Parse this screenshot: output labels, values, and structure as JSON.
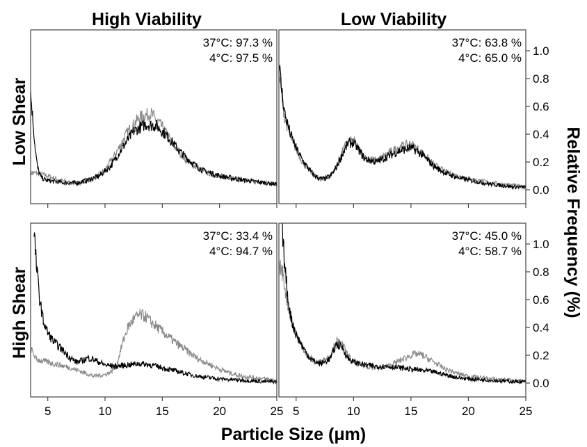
{
  "figure": {
    "column_titles": [
      "High Viability",
      "Low Viability"
    ],
    "row_titles": [
      "Low Shear",
      "High Shear"
    ],
    "xlabel": "Particle Size (μm)",
    "ylabel": "Relative Frequency (%)"
  },
  "chart_data": [
    {
      "type": "line",
      "column": "High Viability",
      "row": "Low Shear",
      "annotations": [
        "37°C: 97.3 %",
        "4°C: 97.5 %"
      ],
      "xlim": [
        3.5,
        25
      ],
      "ylim": [
        -0.1,
        1.15
      ],
      "xticks": [
        5,
        10,
        15,
        20,
        25
      ],
      "yticks": [
        0.0,
        0.2,
        0.4,
        0.6,
        0.8,
        1.0
      ],
      "series": [
        {
          "color": "#000000",
          "x": [
            3.5,
            3.7,
            3.9,
            4.1,
            4.4,
            4.8,
            5.5,
            6.5,
            7.5,
            8.5,
            9.5,
            10.5,
            11.5,
            12.5,
            13.5,
            14.5,
            15.5,
            16.5,
            17.5,
            18.5,
            20,
            22,
            24,
            25
          ],
          "y": [
            0.7,
            0.5,
            0.3,
            0.16,
            0.09,
            0.07,
            0.06,
            0.05,
            0.05,
            0.07,
            0.1,
            0.17,
            0.3,
            0.42,
            0.47,
            0.46,
            0.38,
            0.28,
            0.2,
            0.14,
            0.1,
            0.07,
            0.05,
            0.04
          ]
        },
        {
          "color": "#888888",
          "x": [
            3.5,
            4,
            5,
            6,
            7,
            8,
            9,
            10,
            11,
            12,
            13,
            14,
            15,
            16,
            17,
            18,
            19,
            20,
            22,
            24,
            25
          ],
          "y": [
            0.12,
            0.12,
            0.1,
            0.07,
            0.05,
            0.05,
            0.08,
            0.14,
            0.27,
            0.42,
            0.52,
            0.55,
            0.45,
            0.32,
            0.22,
            0.16,
            0.12,
            0.1,
            0.07,
            0.05,
            0.04
          ]
        }
      ]
    },
    {
      "type": "line",
      "column": "Low Viability",
      "row": "Low Shear",
      "annotations": [
        "37°C: 63.8 %",
        "4°C: 65.0 %"
      ],
      "xlim": [
        3.5,
        25
      ],
      "ylim": [
        -0.1,
        1.15
      ],
      "xticks": [
        5,
        10,
        15,
        20,
        25
      ],
      "yticks": [
        0.0,
        0.2,
        0.4,
        0.6,
        0.8,
        1.0
      ],
      "series": [
        {
          "color": "#000000",
          "x": [
            3.5,
            3.7,
            4,
            4.5,
            5,
            5.5,
            6,
            6.5,
            7,
            7.5,
            8,
            8.5,
            9,
            9.5,
            10,
            10.5,
            11,
            12,
            13,
            14,
            15,
            15.5,
            16,
            17,
            18,
            19,
            20,
            22,
            24,
            25
          ],
          "y": [
            0.92,
            0.75,
            0.55,
            0.4,
            0.3,
            0.22,
            0.16,
            0.11,
            0.08,
            0.08,
            0.1,
            0.16,
            0.25,
            0.33,
            0.34,
            0.28,
            0.22,
            0.2,
            0.24,
            0.28,
            0.3,
            0.28,
            0.25,
            0.17,
            0.12,
            0.09,
            0.07,
            0.04,
            0.02,
            0.02
          ]
        },
        {
          "color": "#888888",
          "x": [
            3.5,
            3.7,
            4,
            4.5,
            5,
            5.5,
            6,
            6.5,
            7,
            7.5,
            8,
            8.5,
            9,
            9.5,
            10,
            10.5,
            11,
            12,
            13,
            14,
            15,
            15.5,
            16,
            17,
            18,
            19,
            20,
            22,
            24,
            25
          ],
          "y": [
            0.85,
            0.7,
            0.52,
            0.38,
            0.29,
            0.21,
            0.15,
            0.11,
            0.08,
            0.08,
            0.1,
            0.17,
            0.27,
            0.35,
            0.35,
            0.29,
            0.23,
            0.21,
            0.26,
            0.31,
            0.33,
            0.3,
            0.26,
            0.18,
            0.13,
            0.1,
            0.08,
            0.05,
            0.03,
            0.02
          ]
        }
      ]
    },
    {
      "type": "line",
      "column": "High Viability",
      "row": "High Shear",
      "annotations": [
        "37°C: 33.4 %",
        "4°C: 94.7 %"
      ],
      "xlim": [
        3.5,
        25
      ],
      "ylim": [
        -0.1,
        1.15
      ],
      "xticks": [
        5,
        10,
        15,
        20,
        25
      ],
      "yticks": [
        0.0,
        0.2,
        0.4,
        0.6,
        0.8,
        1.0
      ],
      "series": [
        {
          "color": "#000000",
          "x": [
            3.8,
            4,
            4.3,
            4.6,
            5,
            5.5,
            6,
            6.5,
            7,
            7.5,
            8,
            8.5,
            9,
            9.5,
            10,
            11,
            12,
            13,
            14,
            15,
            16,
            17,
            18,
            19,
            20,
            22,
            24,
            25
          ],
          "y": [
            1.1,
            0.85,
            0.6,
            0.45,
            0.36,
            0.3,
            0.26,
            0.22,
            0.18,
            0.15,
            0.16,
            0.18,
            0.17,
            0.15,
            0.13,
            0.12,
            0.13,
            0.14,
            0.13,
            0.11,
            0.09,
            0.07,
            0.05,
            0.04,
            0.03,
            0.02,
            0.01,
            0.01
          ]
        },
        {
          "color": "#888888",
          "x": [
            3.5,
            4,
            5,
            6,
            7,
            8,
            9,
            10,
            10.5,
            11,
            11.5,
            12,
            12.5,
            13,
            13.5,
            14,
            15,
            16,
            17,
            18,
            19,
            20,
            21,
            22,
            24,
            25
          ],
          "y": [
            0.25,
            0.17,
            0.15,
            0.13,
            0.11,
            0.08,
            0.05,
            0.06,
            0.08,
            0.12,
            0.28,
            0.4,
            0.46,
            0.49,
            0.48,
            0.44,
            0.37,
            0.3,
            0.24,
            0.18,
            0.14,
            0.1,
            0.07,
            0.05,
            0.03,
            0.02
          ]
        }
      ]
    },
    {
      "type": "line",
      "column": "Low Viability",
      "row": "High Shear",
      "annotations": [
        "37°C: 45.0 %",
        "4°C: 58.7 %"
      ],
      "xlim": [
        3.5,
        25
      ],
      "ylim": [
        -0.1,
        1.15
      ],
      "xticks": [
        5,
        10,
        15,
        20,
        25
      ],
      "yticks": [
        0.0,
        0.2,
        0.4,
        0.6,
        0.8,
        1.0
      ],
      "series": [
        {
          "color": "#000000",
          "x": [
            3.8,
            4,
            4.3,
            4.6,
            5,
            5.5,
            6,
            6.5,
            7,
            7.5,
            8,
            8.5,
            9,
            9.5,
            10,
            11,
            12,
            13,
            14,
            15,
            16,
            17,
            18,
            19,
            20,
            22,
            24,
            25
          ],
          "y": [
            1.1,
            0.85,
            0.6,
            0.45,
            0.35,
            0.27,
            0.2,
            0.16,
            0.14,
            0.15,
            0.18,
            0.28,
            0.26,
            0.18,
            0.15,
            0.13,
            0.12,
            0.12,
            0.11,
            0.1,
            0.09,
            0.08,
            0.06,
            0.04,
            0.03,
            0.02,
            0.01,
            0.01
          ]
        },
        {
          "color": "#888888",
          "x": [
            3.5,
            3.8,
            4.2,
            4.6,
            5,
            5.5,
            6,
            6.5,
            7,
            7.5,
            8,
            8.5,
            9,
            9.5,
            10,
            11,
            12,
            13,
            14,
            15,
            15.5,
            16,
            17,
            18,
            19,
            20,
            22,
            24,
            25
          ],
          "y": [
            0.85,
            0.8,
            0.6,
            0.45,
            0.35,
            0.27,
            0.2,
            0.16,
            0.15,
            0.17,
            0.2,
            0.3,
            0.28,
            0.2,
            0.15,
            0.12,
            0.11,
            0.12,
            0.16,
            0.2,
            0.21,
            0.2,
            0.15,
            0.1,
            0.07,
            0.05,
            0.03,
            0.02,
            0.01
          ]
        }
      ]
    }
  ]
}
